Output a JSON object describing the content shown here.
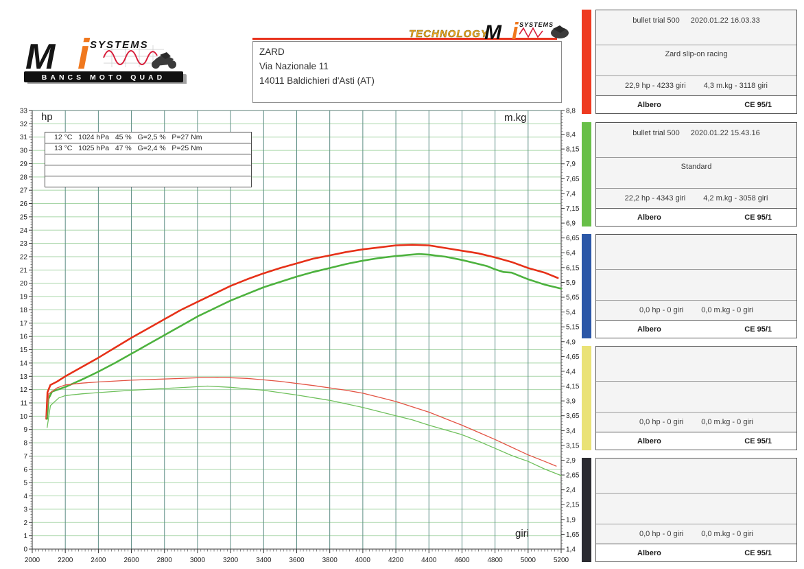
{
  "header": {
    "logo": {
      "m": "M",
      "i": "i",
      "systems": "SYSTEMS",
      "banner": "BANCS MOTO QUAD"
    },
    "tech_logo": {
      "technology": "TECHNOLOGY",
      "m": "M",
      "i": "i",
      "systems": "SYSTEMS"
    },
    "address": {
      "line1": "ZARD",
      "line2": "Via Nazionale 11",
      "line3": "14011 Baldichieri d'Asti (AT)"
    }
  },
  "legend": {
    "rows": [
      "12 °C   1024 hPa   45 %   G=2,5 %   P=27 Nm",
      "13 °C   1025 hPa   47 %   G=2,4 %   P=25 Nm",
      "",
      "",
      ""
    ]
  },
  "chart_data": {
    "type": "line",
    "xlabel": "giri",
    "ylabel_left": "hp",
    "ylabel_right": "m.kg",
    "x_range": [
      2000,
      5200
    ],
    "x_step": 200,
    "x_minor_step": 20,
    "y_left_range": [
      0,
      33
    ],
    "y_left_step": 1,
    "y_right_range": [
      1.4,
      8.8
    ],
    "y_right_step": 0.25,
    "grid": true,
    "legend_position": "none",
    "colors": {
      "grid_h": "#a8d6a8",
      "grid_v": "#5d8d85",
      "zard": "#e63118",
      "standard": "#4db23e"
    },
    "series": [
      {
        "name": "Power - Zard slip-on racing",
        "axis": "left",
        "unit": "hp",
        "color": "#e63118",
        "width": 2.6,
        "points": [
          [
            2085,
            9.8
          ],
          [
            2092,
            11.8
          ],
          [
            2110,
            12.35
          ],
          [
            2150,
            12.6
          ],
          [
            2200,
            13.0
          ],
          [
            2300,
            13.7
          ],
          [
            2400,
            14.4
          ],
          [
            2500,
            15.15
          ],
          [
            2600,
            15.9
          ],
          [
            2700,
            16.6
          ],
          [
            2800,
            17.3
          ],
          [
            2900,
            18.0
          ],
          [
            3000,
            18.6
          ],
          [
            3100,
            19.2
          ],
          [
            3200,
            19.8
          ],
          [
            3300,
            20.3
          ],
          [
            3400,
            20.75
          ],
          [
            3500,
            21.15
          ],
          [
            3600,
            21.5
          ],
          [
            3700,
            21.85
          ],
          [
            3800,
            22.1
          ],
          [
            3900,
            22.35
          ],
          [
            4000,
            22.55
          ],
          [
            4100,
            22.7
          ],
          [
            4200,
            22.85
          ],
          [
            4300,
            22.9
          ],
          [
            4400,
            22.85
          ],
          [
            4500,
            22.65
          ],
          [
            4600,
            22.45
          ],
          [
            4650,
            22.35
          ],
          [
            4700,
            22.25
          ],
          [
            4800,
            21.95
          ],
          [
            4900,
            21.6
          ],
          [
            5000,
            21.15
          ],
          [
            5100,
            20.8
          ],
          [
            5180,
            20.4
          ]
        ]
      },
      {
        "name": "Power - Standard",
        "axis": "left",
        "unit": "hp",
        "color": "#4db23e",
        "width": 2.6,
        "points": [
          [
            2090,
            9.8
          ],
          [
            2098,
            11.3
          ],
          [
            2120,
            11.85
          ],
          [
            2200,
            12.2
          ],
          [
            2300,
            12.75
          ],
          [
            2400,
            13.35
          ],
          [
            2500,
            14.0
          ],
          [
            2600,
            14.7
          ],
          [
            2700,
            15.4
          ],
          [
            2800,
            16.1
          ],
          [
            2900,
            16.8
          ],
          [
            3000,
            17.5
          ],
          [
            3100,
            18.1
          ],
          [
            3200,
            18.7
          ],
          [
            3300,
            19.2
          ],
          [
            3400,
            19.7
          ],
          [
            3500,
            20.1
          ],
          [
            3600,
            20.5
          ],
          [
            3700,
            20.85
          ],
          [
            3800,
            21.15
          ],
          [
            3900,
            21.45
          ],
          [
            4000,
            21.7
          ],
          [
            4100,
            21.9
          ],
          [
            4200,
            22.05
          ],
          [
            4340,
            22.2
          ],
          [
            4400,
            22.15
          ],
          [
            4500,
            22.0
          ],
          [
            4600,
            21.75
          ],
          [
            4700,
            21.45
          ],
          [
            4750,
            21.3
          ],
          [
            4800,
            21.05
          ],
          [
            4850,
            20.85
          ],
          [
            4900,
            20.8
          ],
          [
            5000,
            20.3
          ],
          [
            5100,
            19.9
          ],
          [
            5200,
            19.6
          ]
        ]
      },
      {
        "name": "Torque - Zard slip-on racing",
        "axis": "right",
        "unit": "m.kg",
        "color": "#e35343",
        "width": 1.3,
        "points": [
          [
            2085,
            3.62
          ],
          [
            2100,
            4.02
          ],
          [
            2150,
            4.12
          ],
          [
            2200,
            4.17
          ],
          [
            2300,
            4.2
          ],
          [
            2400,
            4.22
          ],
          [
            2600,
            4.25
          ],
          [
            2800,
            4.27
          ],
          [
            3000,
            4.29
          ],
          [
            3120,
            4.3
          ],
          [
            3300,
            4.28
          ],
          [
            3500,
            4.23
          ],
          [
            3700,
            4.16
          ],
          [
            3900,
            4.08
          ],
          [
            4000,
            4.03
          ],
          [
            4100,
            3.96
          ],
          [
            4200,
            3.89
          ],
          [
            4300,
            3.8
          ],
          [
            4400,
            3.71
          ],
          [
            4500,
            3.6
          ],
          [
            4600,
            3.49
          ],
          [
            4700,
            3.37
          ],
          [
            4800,
            3.25
          ],
          [
            4900,
            3.12
          ],
          [
            5000,
            2.99
          ],
          [
            5100,
            2.88
          ],
          [
            5170,
            2.8
          ]
        ]
      },
      {
        "name": "Torque - Standard",
        "axis": "right",
        "unit": "m.kg",
        "color": "#6fc05c",
        "width": 1.3,
        "points": [
          [
            2090,
            3.45
          ],
          [
            2110,
            3.82
          ],
          [
            2160,
            3.95
          ],
          [
            2200,
            3.99
          ],
          [
            2300,
            4.02
          ],
          [
            2400,
            4.04
          ],
          [
            2600,
            4.08
          ],
          [
            2800,
            4.11
          ],
          [
            3000,
            4.14
          ],
          [
            3060,
            4.15
          ],
          [
            3200,
            4.13
          ],
          [
            3400,
            4.08
          ],
          [
            3600,
            4.0
          ],
          [
            3800,
            3.91
          ],
          [
            4000,
            3.79
          ],
          [
            4200,
            3.65
          ],
          [
            4300,
            3.58
          ],
          [
            4400,
            3.49
          ],
          [
            4500,
            3.41
          ],
          [
            4600,
            3.33
          ],
          [
            4700,
            3.22
          ],
          [
            4800,
            3.1
          ],
          [
            4900,
            2.98
          ],
          [
            5000,
            2.88
          ],
          [
            5100,
            2.75
          ],
          [
            5200,
            2.64
          ]
        ]
      }
    ]
  },
  "cards": [
    {
      "bar_color": "#ee3a20",
      "title_name": "bullet trial 500",
      "title_date": "2020.01.22 16.03.33",
      "subtitle": "Zard slip-on racing",
      "value_hp": "22,9 hp - 4233 giri",
      "value_mkg": "4,3 m.kg - 3118 giri",
      "footer_left": "Albero",
      "footer_right": "CE 95/1"
    },
    {
      "bar_color": "#68bf48",
      "title_name": "bullet trial 500",
      "title_date": "2020.01.22 15.43.16",
      "subtitle": "Standard",
      "value_hp": "22,2 hp - 4343 giri",
      "value_mkg": "4,2 m.kg - 3058 giri",
      "footer_left": "Albero",
      "footer_right": "CE 95/1"
    },
    {
      "bar_color": "#2b57a7",
      "title_name": "",
      "title_date": "",
      "subtitle": "",
      "value_hp": "0,0 hp - 0 giri",
      "value_mkg": "0,0 m.kg - 0 giri",
      "footer_left": "Albero",
      "footer_right": "CE 95/1"
    },
    {
      "bar_color": "#eae276",
      "title_name": "",
      "title_date": "",
      "subtitle": "",
      "value_hp": "0,0 hp - 0 giri",
      "value_mkg": "0,0 m.kg - 0 giri",
      "footer_left": "Albero",
      "footer_right": "CE 95/1"
    },
    {
      "bar_color": "#2b2b31",
      "title_name": "",
      "title_date": "",
      "subtitle": "",
      "value_hp": "0,0 hp - 0 giri",
      "value_mkg": "0,0 m.kg - 0 giri",
      "footer_left": "Albero",
      "footer_right": "CE 95/1"
    }
  ]
}
